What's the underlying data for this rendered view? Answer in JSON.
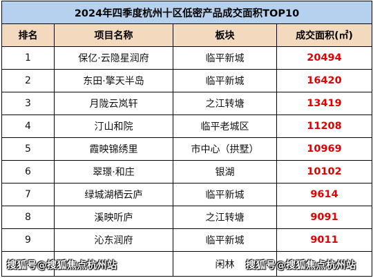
{
  "table": {
    "title": "2024年四季度杭州十区低密产品成交面积TOP10",
    "headers": {
      "rank": "排名",
      "project": "项目名称",
      "block": "板块",
      "area": "成交面积(㎡)"
    },
    "rows": [
      {
        "rank": "1",
        "project": "保亿·云隐星润府",
        "block": "临平新城",
        "area": "20494"
      },
      {
        "rank": "2",
        "project": "东田·擎天半岛",
        "block": "临平新城",
        "area": "16420"
      },
      {
        "rank": "3",
        "project": "月陇云岚轩",
        "block": "之江转塘",
        "area": "13419"
      },
      {
        "rank": "4",
        "project": "汀山和院",
        "block": "临平老城区",
        "area": "11208"
      },
      {
        "rank": "5",
        "project": "霞映锦绣里",
        "block": "市中心（拱墅）",
        "area": "10969"
      },
      {
        "rank": "6",
        "project": "翠璟·和庄",
        "block": "银湖",
        "area": "10102"
      },
      {
        "rank": "7",
        "project": "绿城湖栖云庐",
        "block": "临平新城",
        "area": "9614"
      },
      {
        "rank": "8",
        "project": "溪映听庐",
        "block": "之江转塘",
        "area": "9091"
      },
      {
        "rank": "9",
        "project": "沁东润府",
        "block": "临平新城",
        "area": "9011"
      },
      {
        "rank": "",
        "project": "",
        "block": "闲林",
        "area": ""
      }
    ]
  },
  "watermarks": {
    "left": "搜狐号@搜狐焦点杭州站",
    "right": "搜狐号@搜狐焦点杭州站"
  }
}
